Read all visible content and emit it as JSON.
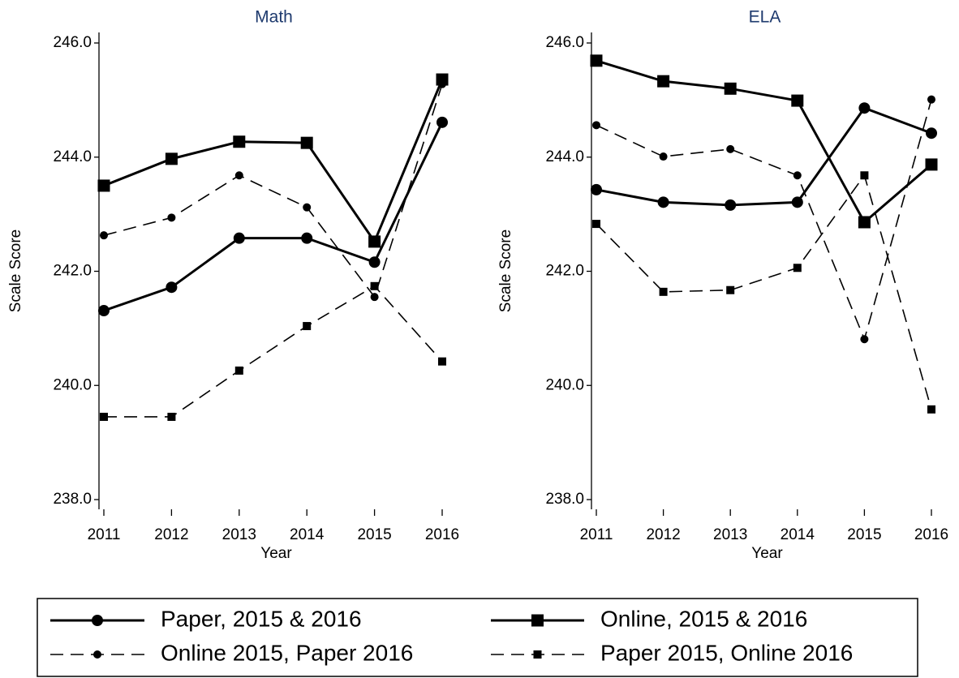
{
  "chart_data": [
    {
      "type": "line",
      "title": "Math",
      "x_label": "Year",
      "y_label": "Scale Score",
      "categories": [
        "2011",
        "2012",
        "2013",
        "2014",
        "2015",
        "2016"
      ],
      "ylim": [
        238,
        246
      ],
      "yticks": [
        {
          "value": 238,
          "label": "238.0"
        },
        {
          "value": 240,
          "label": "240.0"
        },
        {
          "value": 242,
          "label": "242.0"
        },
        {
          "value": 244,
          "label": "244.0"
        },
        {
          "value": 246,
          "label": "246.0"
        }
      ],
      "series": [
        {
          "name": "Paper, 2015 & 2016",
          "color": "#000000",
          "dash": false,
          "marker": "circle",
          "marker_size": "large",
          "values": [
            241.31,
            241.72,
            242.58,
            242.58,
            242.16,
            244.61
          ]
        },
        {
          "name": "Online, 2015 & 2016",
          "color": "#000000",
          "dash": false,
          "marker": "square",
          "marker_size": "large",
          "values": [
            243.5,
            243.97,
            244.27,
            244.25,
            242.52,
            245.36
          ]
        },
        {
          "name": "Online 2015, Paper 2016",
          "color": "#000000",
          "dash": true,
          "marker": "circle",
          "marker_size": "small",
          "values": [
            242.63,
            242.94,
            243.68,
            243.12,
            241.55,
            245.28
          ]
        },
        {
          "name": "Paper 2015, Online 2016",
          "color": "#000000",
          "dash": true,
          "marker": "square",
          "marker_size": "small",
          "values": [
            239.45,
            239.45,
            240.26,
            241.04,
            241.74,
            240.42
          ]
        }
      ]
    },
    {
      "type": "line",
      "title": "ELA",
      "x_label": "Year",
      "y_label": "Scale Score",
      "categories": [
        "2011",
        "2012",
        "2013",
        "2014",
        "2015",
        "2016"
      ],
      "ylim": [
        238,
        246
      ],
      "yticks": [
        {
          "value": 238,
          "label": "238.0"
        },
        {
          "value": 240,
          "label": "240.0"
        },
        {
          "value": 242,
          "label": "242.0"
        },
        {
          "value": 244,
          "label": "244.0"
        },
        {
          "value": 246,
          "label": "246.0"
        }
      ],
      "series": [
        {
          "color": "#000000",
          "dash": false,
          "marker": "circle",
          "marker_size": "large",
          "values": [
            243.43,
            243.21,
            243.16,
            243.21,
            244.86,
            244.42
          ]
        },
        {
          "color": "#000000",
          "dash": false,
          "marker": "square",
          "marker_size": "large",
          "values": [
            245.69,
            245.33,
            245.2,
            244.99,
            242.86,
            243.87
          ]
        },
        {
          "color": "#000000",
          "dash": true,
          "marker": "circle",
          "marker_size": "small",
          "values": [
            244.56,
            244.01,
            244.14,
            243.68,
            240.81,
            245.01
          ]
        },
        {
          "color": "#000000",
          "dash": true,
          "marker": "square",
          "marker_size": "small",
          "values": [
            242.83,
            241.64,
            241.67,
            242.06,
            243.68,
            239.58
          ]
        }
      ]
    }
  ]
}
